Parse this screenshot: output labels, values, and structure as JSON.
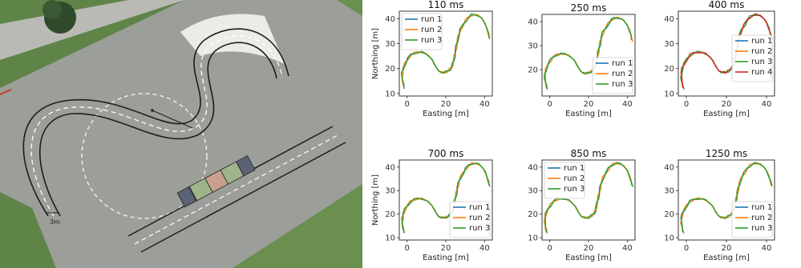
{
  "aerial": {
    "scale_label": "3m",
    "colors": {
      "asphalt": "#a6a6a3",
      "grass": "#5f8448",
      "lane": "#1e1e1e",
      "boundary": "#ececec"
    }
  },
  "chart_data": [
    {
      "type": "line",
      "title": "110 ms",
      "xlabel": "Easting [m]",
      "ylabel": "Northing [m]",
      "xlim": [
        -4,
        44
      ],
      "ylim": [
        9,
        43
      ],
      "xticks": [
        0,
        20,
        40
      ],
      "yticks": [
        10,
        20,
        30,
        40
      ],
      "legend": "top-left",
      "series": [
        {
          "name": "run 1",
          "color": "#1f77b4"
        },
        {
          "name": "run 2",
          "color": "#ff7f0e"
        },
        {
          "name": "run 3",
          "color": "#2ca02c"
        }
      ]
    },
    {
      "type": "line",
      "title": "250 ms",
      "xlabel": "Easting [m]",
      "ylabel": "",
      "xlim": [
        -4,
        44
      ],
      "ylim": [
        9,
        43
      ],
      "xticks": [
        0,
        20,
        40
      ],
      "yticks": [
        20,
        30,
        40
      ],
      "legend": "bottom-right",
      "series": [
        {
          "name": "run 1",
          "color": "#1f77b4"
        },
        {
          "name": "run 2",
          "color": "#ff7f0e"
        },
        {
          "name": "run 3",
          "color": "#2ca02c"
        }
      ]
    },
    {
      "type": "line",
      "title": "400 ms",
      "xlabel": "Easting [m]",
      "ylabel": "",
      "xlim": [
        -4,
        44
      ],
      "ylim": [
        9,
        43
      ],
      "xticks": [
        0,
        20,
        40
      ],
      "yticks": [
        10,
        20,
        30,
        40
      ],
      "legend": "right",
      "series": [
        {
          "name": "run 1",
          "color": "#1f77b4"
        },
        {
          "name": "run 2",
          "color": "#ff7f0e"
        },
        {
          "name": "run 3",
          "color": "#2ca02c"
        },
        {
          "name": "run 4",
          "color": "#d62728"
        }
      ]
    },
    {
      "type": "line",
      "title": "700 ms",
      "xlabel": "Easting [m]",
      "ylabel": "Northing [m]",
      "xlim": [
        -4,
        44
      ],
      "ylim": [
        9,
        43
      ],
      "xticks": [
        0,
        20,
        40
      ],
      "yticks": [
        10,
        20,
        30,
        40
      ],
      "legend": "bottom-right",
      "series": [
        {
          "name": "run 1",
          "color": "#1f77b4"
        },
        {
          "name": "run 2",
          "color": "#ff7f0e"
        },
        {
          "name": "run 3",
          "color": "#2ca02c"
        }
      ]
    },
    {
      "type": "line",
      "title": "850 ms",
      "xlabel": "Easting [m]",
      "ylabel": "",
      "xlim": [
        -4,
        44
      ],
      "ylim": [
        9,
        43
      ],
      "xticks": [
        0,
        20,
        40
      ],
      "yticks": [
        10,
        20,
        30,
        40
      ],
      "legend": "top-left",
      "series": [
        {
          "name": "run 1",
          "color": "#1f77b4"
        },
        {
          "name": "run 2",
          "color": "#ff7f0e"
        },
        {
          "name": "run 3",
          "color": "#2ca02c"
        }
      ]
    },
    {
      "type": "line",
      "title": "1250 ms",
      "xlabel": "Easting [m]",
      "ylabel": "",
      "xlim": [
        -4,
        44
      ],
      "ylim": [
        9,
        43
      ],
      "xticks": [
        0,
        20,
        40
      ],
      "yticks": [
        10,
        20,
        30,
        40
      ],
      "legend": "bottom-right",
      "series": [
        {
          "name": "run 1",
          "color": "#1f77b4"
        },
        {
          "name": "run 2",
          "color": "#ff7f0e"
        },
        {
          "name": "run 3",
          "color": "#2ca02c"
        }
      ]
    }
  ],
  "trajectory": {
    "x": [
      -1.5,
      -2,
      -2.5,
      -2.5,
      -2,
      -1,
      0.5,
      2,
      4,
      6,
      8,
      10,
      11.5,
      13,
      14,
      14.8,
      15.5,
      16,
      17,
      18,
      19,
      20,
      21,
      22,
      23,
      23.5,
      24,
      24.5,
      25,
      25.5,
      26,
      26.5,
      27.5,
      29,
      30.5,
      32,
      33.5,
      35,
      37,
      38.5,
      40,
      41,
      42,
      42.5
    ],
    "y": [
      12,
      14,
      16,
      18,
      20,
      22,
      24,
      25.5,
      26.3,
      26.6,
      26.5,
      25.8,
      24.8,
      23.5,
      22,
      20.8,
      20,
      19.3,
      18.7,
      18.5,
      18.5,
      18.6,
      19,
      19.6,
      20.5,
      21.5,
      23,
      25,
      27,
      29,
      31,
      33,
      35.5,
      37.5,
      39.5,
      40.8,
      41.5,
      41.6,
      41.2,
      40.2,
      38.5,
      36.5,
      34,
      32
    ]
  }
}
